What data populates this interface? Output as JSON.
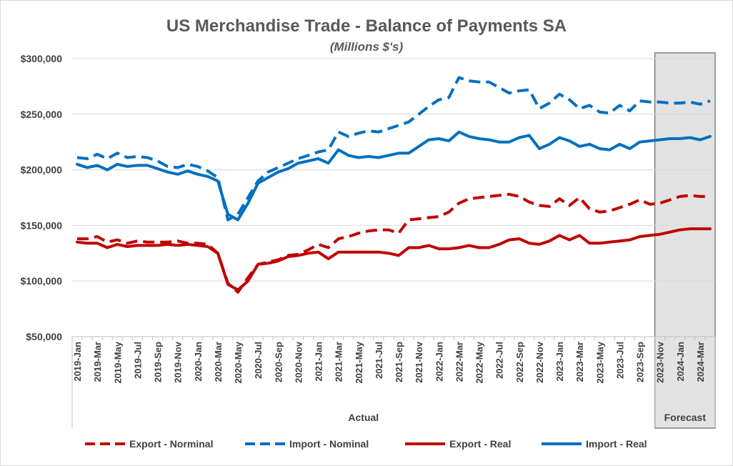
{
  "chart_data": {
    "type": "line",
    "title": "US Merchandise Trade - Balance of Payments SA",
    "subtitle": "(Millions $'s)",
    "ylim": [
      50000,
      300000
    ],
    "yticks": [
      "$50,000",
      "$100,000",
      "$150,000",
      "$200,000",
      "$250,000",
      "$300,000"
    ],
    "grid": "horizontal",
    "legend_position": "bottom",
    "x": [
      "2019-Jan",
      "2019-Feb",
      "2019-Mar",
      "2019-Apr",
      "2019-May",
      "2019-Jun",
      "2019-Jul",
      "2019-Aug",
      "2019-Sep",
      "2019-Oct",
      "2019-Nov",
      "2019-Dec",
      "2020-Jan",
      "2020-Feb",
      "2020-Mar",
      "2020-Apr",
      "2020-May",
      "2020-Jun",
      "2020-Jul",
      "2020-Aug",
      "2020-Sep",
      "2020-Oct",
      "2020-Nov",
      "2020-Dec",
      "2021-Jan",
      "2021-Feb",
      "2021-Mar",
      "2021-Apr",
      "2021-May",
      "2021-Jun",
      "2021-Jul",
      "2021-Aug",
      "2021-Sep",
      "2021-Oct",
      "2021-Nov",
      "2021-Dec",
      "2022-Jan",
      "2022-Feb",
      "2022-Mar",
      "2022-Apr",
      "2022-May",
      "2022-Jun",
      "2022-Jul",
      "2022-Aug",
      "2022-Sep",
      "2022-Oct",
      "2022-Nov",
      "2022-Dec",
      "2023-Jan",
      "2023-Feb",
      "2023-Mar",
      "2023-Apr",
      "2023-May",
      "2023-Jun",
      "2023-Jul",
      "2023-Aug",
      "2023-Sep",
      "2023-Oct",
      "2023-Nov",
      "2023-Dec",
      "2024-Jan",
      "2024-Feb",
      "2024-Mar",
      "2024-Apr"
    ],
    "tick_labels": [
      "2019-Jan",
      "2019-Mar",
      "2019-May",
      "2019-Jul",
      "2019-Sep",
      "2019-Nov",
      "2020-Jan",
      "2020-Mar",
      "2020-May",
      "2020-Jul",
      "2020-Sep",
      "2020-Nov",
      "2021-Jan",
      "2021-Mar",
      "2021-May",
      "2021-Jul",
      "2021-Sep",
      "2021-Nov",
      "2022-Jan",
      "2022-Mar",
      "2022-May",
      "2022-Jul",
      "2022-Sep",
      "2022-Nov",
      "2023-Jan",
      "2023-Mar",
      "2023-May",
      "2023-Jul",
      "2023-Sep",
      "2023-Nov",
      "2024-Jan",
      "2024-Mar"
    ],
    "groups": [
      {
        "label": "Actual",
        "from": "2019-Jan",
        "to": "2023-Oct"
      },
      {
        "label": "Forecast",
        "from": "2023-Nov",
        "to": "2024-Apr"
      }
    ],
    "forecast_start": "2023-Nov",
    "series": [
      {
        "name": "Export - Norminal",
        "color": "#c00000",
        "dash": true,
        "values": [
          138000,
          138000,
          140000,
          135000,
          137000,
          134000,
          136000,
          135000,
          135000,
          135000,
          136000,
          134000,
          134000,
          133000,
          125000,
          98000,
          90000,
          103000,
          115000,
          117000,
          119000,
          123000,
          124000,
          128000,
          133000,
          130000,
          138000,
          140000,
          143000,
          145000,
          146000,
          146000,
          143000,
          155000,
          156000,
          157000,
          158000,
          162000,
          170000,
          174000,
          175000,
          176000,
          177000,
          178000,
          176000,
          171000,
          168000,
          167000,
          174000,
          168000,
          175000,
          165000,
          162000,
          163000,
          166000,
          169000,
          173000,
          169000,
          170000,
          173000,
          176000,
          177000,
          176000,
          176000
        ]
      },
      {
        "name": "Import - Nominal",
        "color": "#0070c0",
        "dash": true,
        "values": [
          211000,
          210000,
          214000,
          210000,
          215000,
          211000,
          212000,
          211000,
          208000,
          203000,
          202000,
          205000,
          203000,
          199000,
          193000,
          155000,
          160000,
          175000,
          190000,
          198000,
          202000,
          206000,
          210000,
          213000,
          216000,
          218000,
          234000,
          230000,
          233000,
          235000,
          234000,
          237000,
          240000,
          243000,
          250000,
          257000,
          263000,
          265000,
          283000,
          280000,
          279000,
          279000,
          274000,
          269000,
          271000,
          272000,
          255000,
          260000,
          268000,
          263000,
          255000,
          258000,
          252000,
          251000,
          258000,
          253000,
          262000,
          261000,
          261000,
          260000,
          260000,
          261000,
          259000,
          262000
        ]
      },
      {
        "name": "Export - Real",
        "color": "#c00000",
        "dash": false,
        "values": [
          135000,
          134000,
          134000,
          130000,
          133000,
          131000,
          132000,
          132000,
          132000,
          133000,
          132000,
          133000,
          132000,
          131000,
          125000,
          97000,
          92000,
          100000,
          115000,
          116000,
          118000,
          122000,
          123000,
          125000,
          126000,
          120000,
          126000,
          126000,
          126000,
          126000,
          126000,
          125000,
          123000,
          130000,
          130000,
          132000,
          129000,
          129000,
          130000,
          132000,
          130000,
          130000,
          133000,
          137000,
          138000,
          134000,
          133000,
          136000,
          141000,
          137000,
          141000,
          134000,
          134000,
          135000,
          136000,
          137000,
          140000,
          141000,
          142000,
          144000,
          146000,
          147000,
          147000,
          147000
        ]
      },
      {
        "name": "Import - Real",
        "color": "#0070c0",
        "dash": false,
        "values": [
          205000,
          202000,
          204000,
          200000,
          205000,
          203000,
          204000,
          204000,
          201000,
          198000,
          196000,
          199000,
          196000,
          194000,
          190000,
          160000,
          155000,
          170000,
          188000,
          193000,
          198000,
          201000,
          206000,
          208000,
          210000,
          206000,
          218000,
          213000,
          211000,
          212000,
          211000,
          213000,
          215000,
          215000,
          221000,
          227000,
          228000,
          226000,
          234000,
          230000,
          228000,
          227000,
          225000,
          225000,
          229000,
          231000,
          219000,
          223000,
          229000,
          226000,
          221000,
          223000,
          219000,
          218000,
          223000,
          219000,
          225000,
          226000,
          227000,
          228000,
          228000,
          229000,
          227000,
          230000
        ]
      }
    ]
  }
}
